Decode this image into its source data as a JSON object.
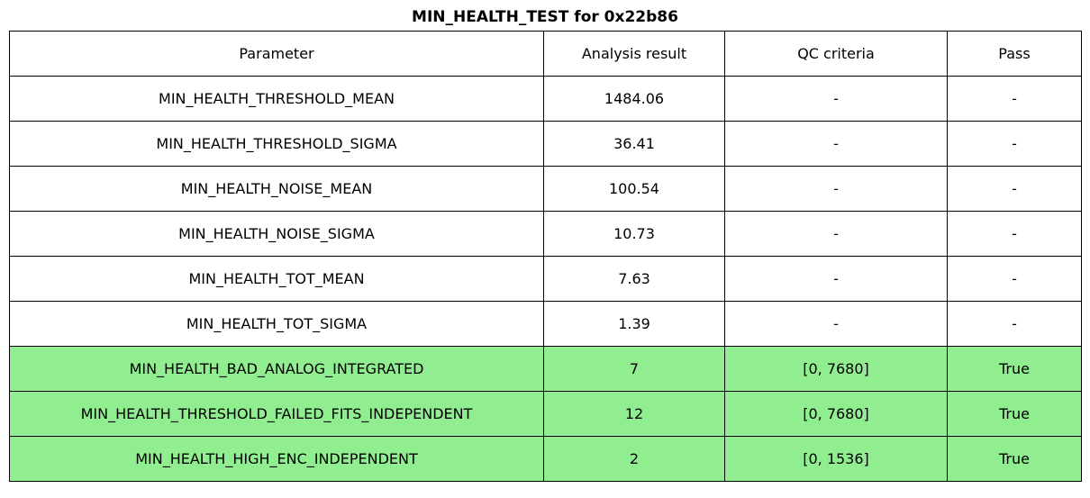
{
  "chart_data": {
    "type": "table",
    "title": "MIN_HEALTH_TEST for 0x22b86",
    "columns": [
      "Parameter",
      "Analysis result",
      "QC criteria",
      "Pass"
    ],
    "rows": [
      {
        "cells": [
          "MIN_HEALTH_THRESHOLD_MEAN",
          "1484.06",
          "-",
          "-"
        ],
        "highlight": false
      },
      {
        "cells": [
          "MIN_HEALTH_THRESHOLD_SIGMA",
          "36.41",
          "-",
          "-"
        ],
        "highlight": false
      },
      {
        "cells": [
          "MIN_HEALTH_NOISE_MEAN",
          "100.54",
          "-",
          "-"
        ],
        "highlight": false
      },
      {
        "cells": [
          "MIN_HEALTH_NOISE_SIGMA",
          "10.73",
          "-",
          "-"
        ],
        "highlight": false
      },
      {
        "cells": [
          "MIN_HEALTH_TOT_MEAN",
          "7.63",
          "-",
          "-"
        ],
        "highlight": false
      },
      {
        "cells": [
          "MIN_HEALTH_TOT_SIGMA",
          "1.39",
          "-",
          "-"
        ],
        "highlight": false
      },
      {
        "cells": [
          "MIN_HEALTH_BAD_ANALOG_INTEGRATED",
          "7",
          "[0, 7680]",
          "True"
        ],
        "highlight": true
      },
      {
        "cells": [
          "MIN_HEALTH_THRESHOLD_FAILED_FITS_INDEPENDENT",
          "12",
          "[0, 7680]",
          "True"
        ],
        "highlight": true
      },
      {
        "cells": [
          "MIN_HEALTH_HIGH_ENC_INDEPENDENT",
          "2",
          "[0, 1536]",
          "True"
        ],
        "highlight": true
      }
    ],
    "highlight_color": "#90ee90",
    "border_color": "#000000",
    "text_color": "#000000",
    "background_color": "#ffffff"
  }
}
